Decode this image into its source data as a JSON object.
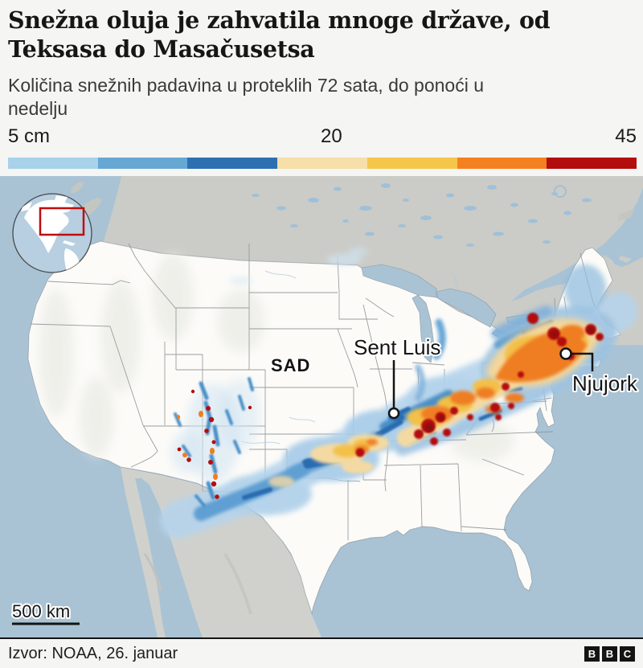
{
  "header": {
    "title": "Snežna oluja je zahvatila mnoge države, od\nTeksasa do Masačusetsa",
    "subtitle": "Količina snežnih padavina u proteklih 72 sata, do ponoći u\nnedelju"
  },
  "legend": {
    "min_label": "5 cm",
    "mid_label": "20",
    "max_label": "45",
    "colors": [
      "#a8d1ea",
      "#66a7d4",
      "#2d70b2",
      "#f6dfa8",
      "#f6c64a",
      "#f5801f",
      "#b30d0d"
    ]
  },
  "map": {
    "country_label": "SAD",
    "cities": [
      {
        "name": "Sent Luis"
      },
      {
        "name": "Njujork"
      }
    ],
    "scale_label": "500 km"
  },
  "footer": {
    "source": "Izvor: NOAA, 26. januar",
    "logo_letters": [
      "B",
      "B",
      "C"
    ]
  }
}
